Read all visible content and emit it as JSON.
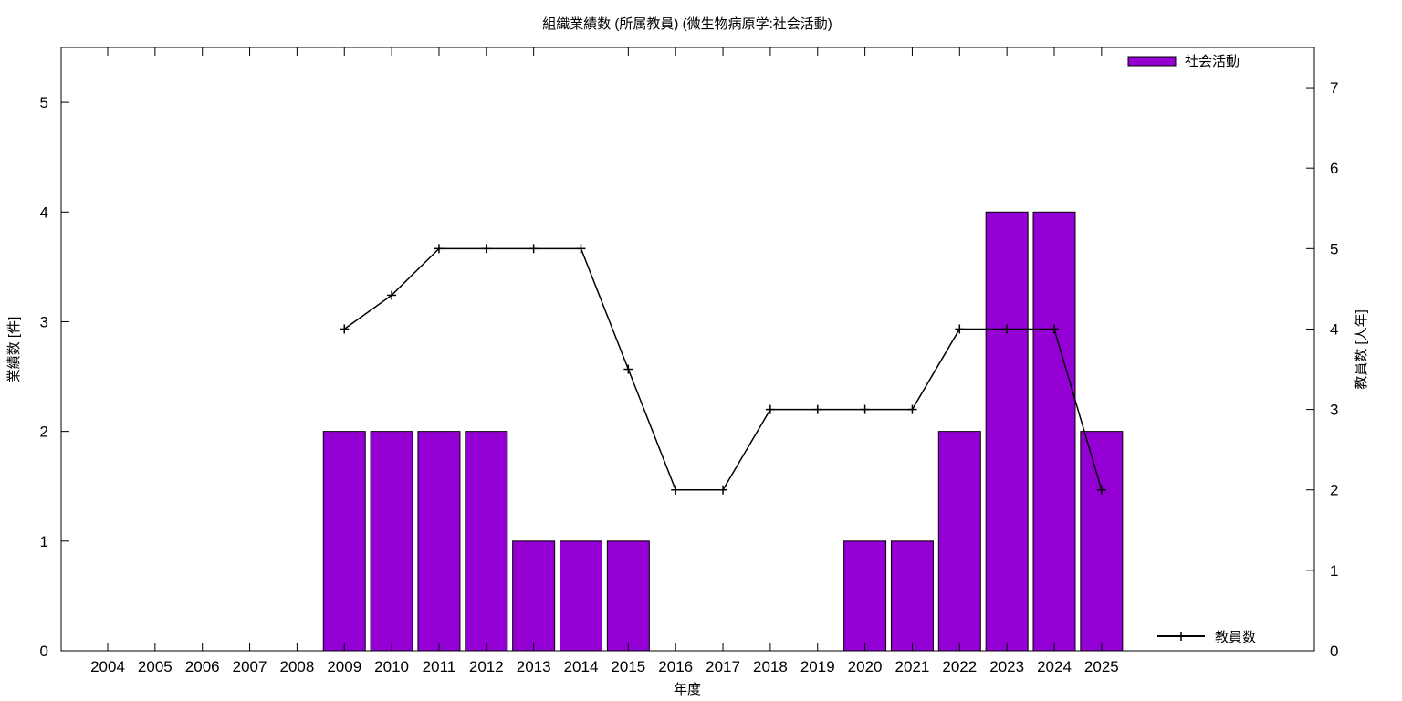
{
  "chart_data": {
    "type": "bar",
    "title": "組織業績数 (所属教員) (微生物病原学:社会活動)",
    "xlabel": "年度",
    "ylabel": "業績数 [件]",
    "y2label": "教員数 [人年]",
    "ylim": [
      0,
      5.5
    ],
    "y2lim": [
      0,
      7.5
    ],
    "yticks": [
      "0",
      "1",
      "2",
      "3",
      "4",
      "5"
    ],
    "y2ticks": [
      "0",
      "1",
      "2",
      "3",
      "4",
      "5",
      "6",
      "7"
    ],
    "categories": [
      "2004",
      "2005",
      "2006",
      "2007",
      "2008",
      "2009",
      "2010",
      "2011",
      "2012",
      "2013",
      "2014",
      "2015",
      "2016",
      "2017",
      "2018",
      "2019",
      "2020",
      "2021",
      "2022",
      "2023",
      "2024",
      "2025"
    ],
    "series": [
      {
        "name": "社会活動",
        "type": "bar",
        "axis": "y",
        "color": "#9400d3",
        "values": [
          0,
          0,
          0,
          0,
          0,
          2,
          2,
          2,
          2,
          1,
          1,
          1,
          0,
          0,
          0,
          0,
          1,
          1,
          2,
          4,
          4,
          2
        ]
      },
      {
        "name": "教員数",
        "type": "line",
        "axis": "y2",
        "color": "#000000",
        "values": [
          null,
          null,
          null,
          null,
          null,
          4.0,
          4.42,
          5.0,
          5.0,
          5.0,
          5.0,
          3.5,
          2.0,
          2.0,
          3.0,
          3.0,
          3.0,
          3.0,
          4.0,
          4.0,
          4.0,
          2.0
        ]
      }
    ],
    "legend": {
      "bar_position": "top-right",
      "line_position": "bottom-right"
    },
    "grid": false
  }
}
